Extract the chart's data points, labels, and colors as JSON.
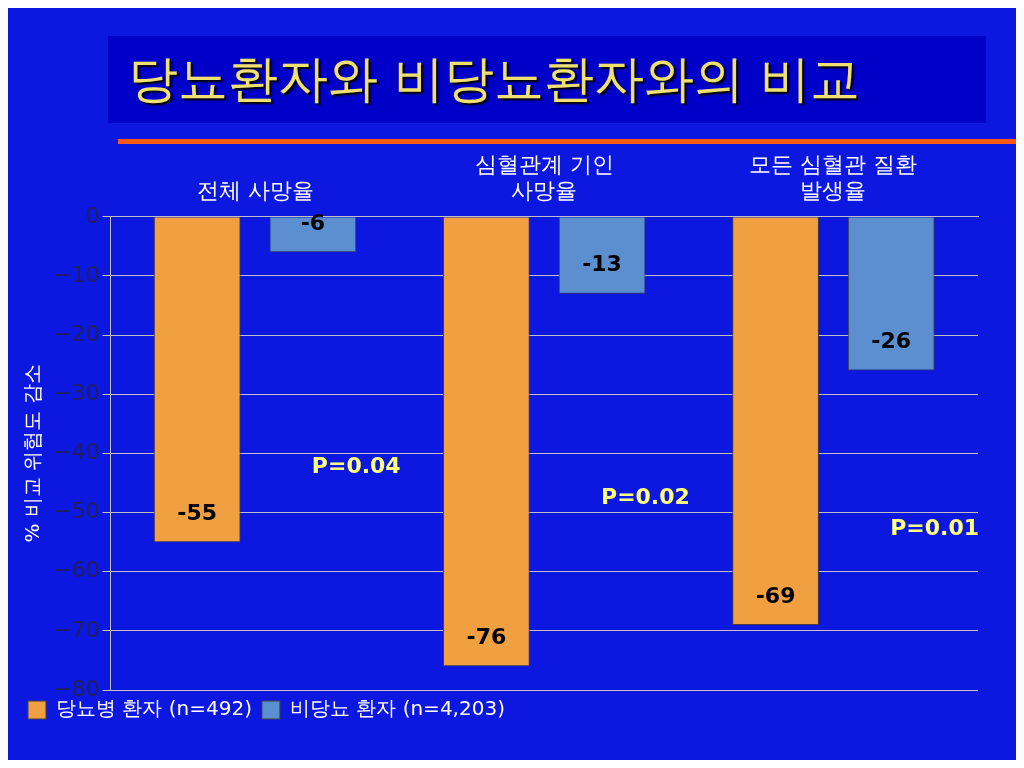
{
  "chart_data": {
    "type": "bar",
    "title": "당뇨환자와 비당뇨환자와의 비교",
    "ylabel": "% 비교 위험도 감소",
    "categories": [
      "전체 사망율",
      "심혈관계 기인 사망율",
      "모든 심혈관 질환 발생율"
    ],
    "series": [
      {
        "name": "당뇨병 환자 (n=492)",
        "color": "#f0a040",
        "values": [
          -55,
          -76,
          -69
        ]
      },
      {
        "name": "비당뇨 환자 (n=4,203)",
        "color": "#5b8fd0",
        "values": [
          -6,
          -13,
          -26
        ]
      }
    ],
    "ylim": [
      -80,
      0
    ],
    "yticks": [
      {
        "value": 0,
        "label": "0"
      },
      {
        "value": -10,
        "label": "−10"
      },
      {
        "value": -20,
        "label": "−20"
      },
      {
        "value": -30,
        "label": "−30"
      },
      {
        "value": -40,
        "label": "−40"
      },
      {
        "value": -50,
        "label": "−50"
      },
      {
        "value": -60,
        "label": "−60"
      },
      {
        "value": -70,
        "label": "−70"
      },
      {
        "value": -80,
        "label": "−80"
      }
    ],
    "grid": "y",
    "legend": "bottom left",
    "data_labels": true,
    "annotations": [
      "P=0.04",
      "P=0.02",
      "P=0.01"
    ]
  }
}
